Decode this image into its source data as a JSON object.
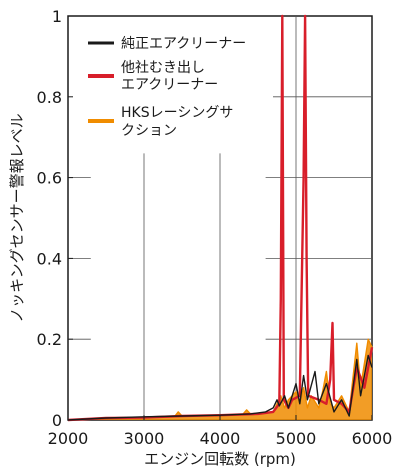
{
  "chart_data": {
    "type": "line",
    "title": "",
    "xlabel": "エンジン回転数 (rpm)",
    "ylabel": "ノッキングセンサー警報レベル",
    "xlim": [
      2000,
      6000
    ],
    "ylim": [
      0,
      1
    ],
    "x_ticks": [
      "2000",
      "3000",
      "4000",
      "5000",
      "6000"
    ],
    "y_ticks": [
      "0",
      "0.2",
      "0.4",
      "0.6",
      "0.8",
      "1"
    ],
    "grid": "partial",
    "legend_position": "top-right",
    "series": [
      {
        "name": "純正エアクリーナー",
        "color": "#1a1a1a",
        "points": [
          [
            2000,
            0.0
          ],
          [
            2500,
            0.005
          ],
          [
            3000,
            0.008
          ],
          [
            3500,
            0.01
          ],
          [
            4000,
            0.012
          ],
          [
            4400,
            0.015
          ],
          [
            4600,
            0.02
          ],
          [
            4700,
            0.03
          ],
          [
            4750,
            0.05
          ],
          [
            4780,
            0.035
          ],
          [
            4850,
            0.06
          ],
          [
            4900,
            0.03
          ],
          [
            5000,
            0.09
          ],
          [
            5050,
            0.04
          ],
          [
            5100,
            0.11
          ],
          [
            5150,
            0.05
          ],
          [
            5250,
            0.12
          ],
          [
            5300,
            0.04
          ],
          [
            5400,
            0.09
          ],
          [
            5500,
            0.02
          ],
          [
            5600,
            0.05
          ],
          [
            5700,
            0.01
          ],
          [
            5800,
            0.15
          ],
          [
            5850,
            0.06
          ],
          [
            5950,
            0.16
          ],
          [
            6000,
            0.13
          ]
        ]
      },
      {
        "name": "他社むき出しエアクリーナー",
        "color": "#d81e2a",
        "points": [
          [
            2000,
            0.0
          ],
          [
            2500,
            0.005
          ],
          [
            3000,
            0.006
          ],
          [
            3500,
            0.01
          ],
          [
            4000,
            0.012
          ],
          [
            4500,
            0.015
          ],
          [
            4700,
            0.02
          ],
          [
            4780,
            0.04
          ],
          [
            4800,
            0.3
          ],
          [
            4820,
            1.0
          ],
          [
            4840,
            0.05
          ],
          [
            4900,
            0.03
          ],
          [
            4950,
            0.05
          ],
          [
            5050,
            0.06
          ],
          [
            5100,
            0.6
          ],
          [
            5120,
            1.0
          ],
          [
            5140,
            0.4
          ],
          [
            5160,
            0.06
          ],
          [
            5300,
            0.05
          ],
          [
            5400,
            0.04
          ],
          [
            5450,
            0.1
          ],
          [
            5480,
            0.24
          ],
          [
            5500,
            0.05
          ],
          [
            5600,
            0.04
          ],
          [
            5700,
            0.02
          ],
          [
            5800,
            0.13
          ],
          [
            5900,
            0.08
          ],
          [
            6000,
            0.18
          ]
        ]
      },
      {
        "name": "HKSレーシングサクション",
        "color": "#f08c00",
        "points": [
          [
            2000,
            0.0
          ],
          [
            2500,
            0.004
          ],
          [
            3000,
            0.006
          ],
          [
            3400,
            0.008
          ],
          [
            3450,
            0.02
          ],
          [
            3500,
            0.01
          ],
          [
            4000,
            0.012
          ],
          [
            4300,
            0.014
          ],
          [
            4350,
            0.025
          ],
          [
            4400,
            0.015
          ],
          [
            4600,
            0.018
          ],
          [
            4700,
            0.02
          ],
          [
            4750,
            0.04
          ],
          [
            4800,
            0.06
          ],
          [
            4850,
            0.03
          ],
          [
            4900,
            0.05
          ],
          [
            5000,
            0.07
          ],
          [
            5050,
            0.04
          ],
          [
            5100,
            0.08
          ],
          [
            5150,
            0.03
          ],
          [
            5200,
            0.06
          ],
          [
            5300,
            0.03
          ],
          [
            5350,
            0.07
          ],
          [
            5400,
            0.12
          ],
          [
            5450,
            0.04
          ],
          [
            5500,
            0.03
          ],
          [
            5600,
            0.06
          ],
          [
            5700,
            0.02
          ],
          [
            5800,
            0.19
          ],
          [
            5850,
            0.08
          ],
          [
            5950,
            0.2
          ],
          [
            6000,
            0.18
          ]
        ]
      }
    ]
  }
}
